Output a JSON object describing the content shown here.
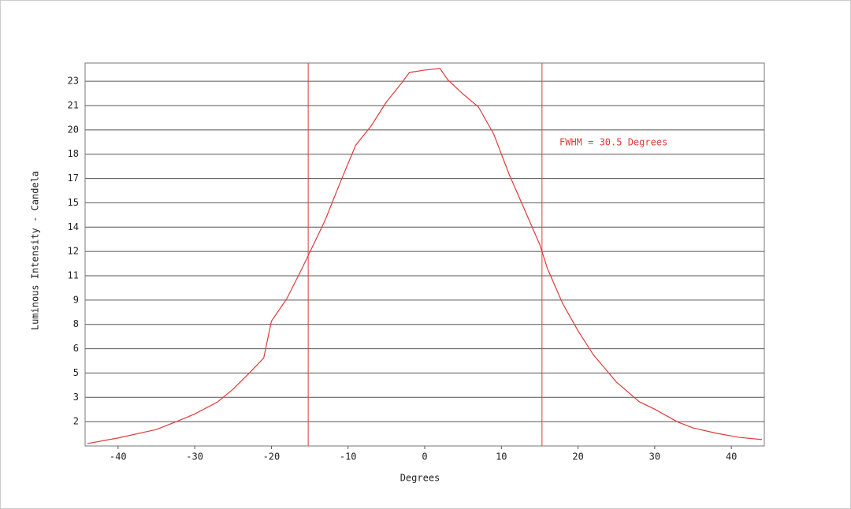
{
  "chart_data": {
    "type": "line",
    "x_label": "Degrees",
    "y_label": "Luminous Intensity - Candela",
    "annotation": "FWHM = 30.5 Degrees",
    "x": [
      -44,
      -40,
      -35,
      -32,
      -30,
      -27,
      -25,
      -23,
      -21,
      -20,
      -18,
      -16,
      -15,
      -13,
      -11,
      -9,
      -7,
      -5,
      -3,
      -2,
      0,
      2,
      3,
      5,
      7,
      9,
      11,
      13,
      15,
      16,
      18,
      20,
      22,
      25,
      28,
      30,
      33,
      35,
      38,
      41,
      44
    ],
    "series": [
      {
        "color": "#e03a3a",
        "values": [
          0.15,
          0.5,
          1.03,
          1.6,
          2.0,
          2.76,
          3.55,
          4.5,
          5.5,
          7.8,
          9.2,
          11.1,
          12.1,
          14.1,
          16.5,
          18.8,
          20.0,
          21.5,
          22.7,
          23.35,
          23.5,
          23.6,
          22.9,
          22.0,
          21.2,
          19.5,
          17.0,
          14.8,
          12.6,
          11.1,
          8.9,
          7.2,
          5.7,
          4.0,
          2.76,
          2.3,
          1.5,
          1.13,
          0.8,
          0.54,
          0.4
        ]
      }
    ],
    "vlines": [
      -15.2,
      15.3
    ],
    "xlim": [
      -44.3,
      44.3
    ],
    "ylim": [
      0,
      23.94
    ],
    "xticks": [
      -40,
      -30,
      -20,
      -10,
      0,
      10,
      20,
      30,
      40
    ],
    "yticks": [
      {
        "value": 1.52,
        "label": "2"
      },
      {
        "value": 3.04,
        "label": "3"
      },
      {
        "value": 4.56,
        "label": "5"
      },
      {
        "value": 6.08,
        "label": "6"
      },
      {
        "value": 7.6,
        "label": "8"
      },
      {
        "value": 9.12,
        "label": "9"
      },
      {
        "value": 10.64,
        "label": "11"
      },
      {
        "value": 12.16,
        "label": "12"
      },
      {
        "value": 13.68,
        "label": "14"
      },
      {
        "value": 15.2,
        "label": "15"
      },
      {
        "value": 16.72,
        "label": "17"
      },
      {
        "value": 18.24,
        "label": "18"
      },
      {
        "value": 19.76,
        "label": "20"
      },
      {
        "value": 21.28,
        "label": "21"
      },
      {
        "value": 22.8,
        "label": "23"
      }
    ],
    "grid": true
  }
}
